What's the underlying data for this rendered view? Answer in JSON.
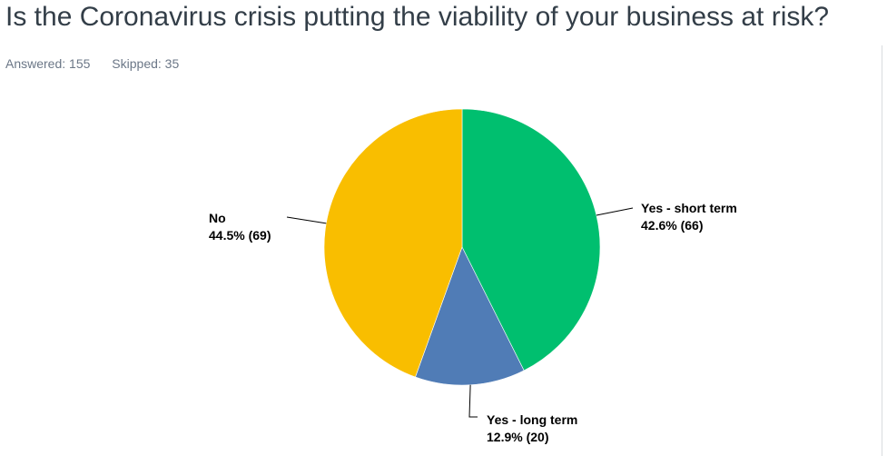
{
  "question": "Is the Coronavirus crisis putting the viability of your business at risk?",
  "answered_text": "Answered: 155",
  "skipped_text": "Skipped: 35",
  "colors": {
    "yes_short": "#00bf6f",
    "yes_long": "#507cb6",
    "no": "#f9be00"
  },
  "chart_data": {
    "type": "pie",
    "title": "",
    "start": "12 o'clock, clockwise",
    "slices": [
      {
        "label": "Yes - short term",
        "percent": 42.6,
        "count": 66,
        "value_text": "42.6% (66)",
        "color": "#00bf6f"
      },
      {
        "label": "Yes - long term",
        "percent": 12.9,
        "count": 20,
        "value_text": "12.9% (20)",
        "color": "#507cb6"
      },
      {
        "label": "No",
        "percent": 44.5,
        "count": 69,
        "value_text": "44.5% (69)",
        "color": "#f9be00"
      }
    ]
  }
}
